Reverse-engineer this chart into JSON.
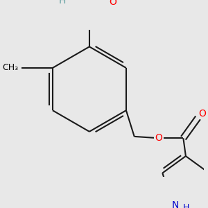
{
  "background_color": "#e8e8e8",
  "bond_color": "#1a1a1a",
  "bond_width": 1.5,
  "atom_colors": {
    "H": "#5f9ea0",
    "O": "#ff0000",
    "N": "#0000cc"
  },
  "font_size": 10
}
